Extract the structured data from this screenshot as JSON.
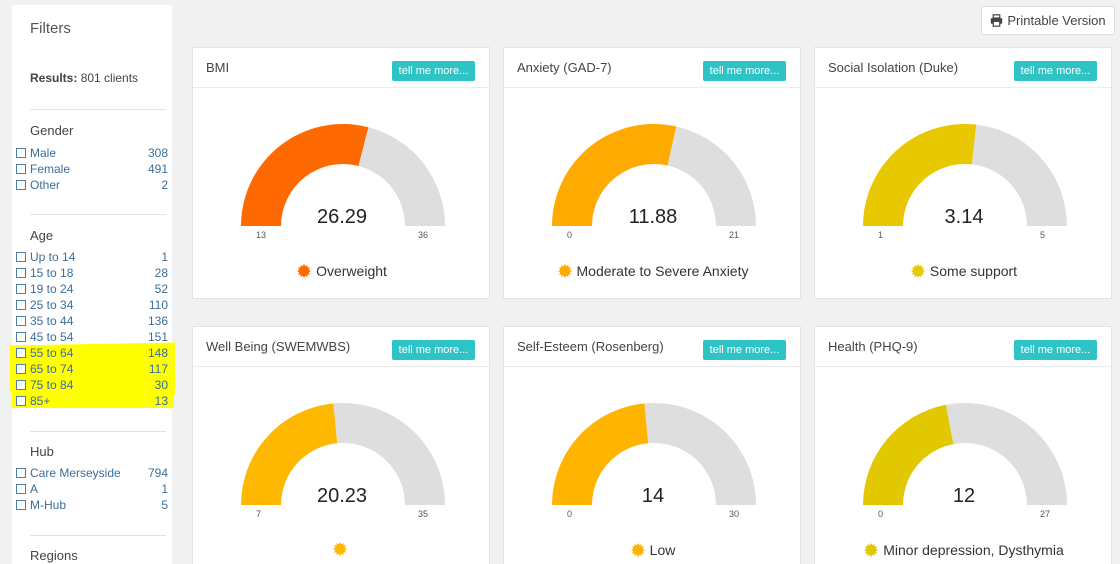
{
  "sidebar": {
    "title": "Filters",
    "results_label": "Results:",
    "results_value": "801 clients",
    "groups": [
      {
        "heading": "Gender",
        "items": [
          {
            "label": "Male",
            "count": "308"
          },
          {
            "label": "Female",
            "count": "491"
          },
          {
            "label": "Other",
            "count": "2"
          }
        ]
      },
      {
        "heading": "Age",
        "items": [
          {
            "label": "Up to 14",
            "count": "1"
          },
          {
            "label": "15 to 18",
            "count": "28"
          },
          {
            "label": "19 to 24",
            "count": "52"
          },
          {
            "label": "25 to 34",
            "count": "110"
          },
          {
            "label": "35 to 44",
            "count": "136"
          },
          {
            "label": "45 to 54",
            "count": "151"
          },
          {
            "label": "55 to 64",
            "count": "148"
          },
          {
            "label": "65 to 74",
            "count": "117"
          },
          {
            "label": "75 to 84",
            "count": "30"
          },
          {
            "label": "85+",
            "count": "13"
          }
        ]
      },
      {
        "heading": "Hub",
        "items": [
          {
            "label": "Care Merseyside",
            "count": "794"
          },
          {
            "label": "A",
            "count": "1"
          },
          {
            "label": "M-Hub",
            "count": "5"
          }
        ]
      },
      {
        "heading": "Regions",
        "items": []
      }
    ]
  },
  "print_button": {
    "label": "Printable Version",
    "icon": "printer-icon"
  },
  "tell_more_label": "tell me more...",
  "colors": {
    "track": "#dedede",
    "button": "#2ec4c6",
    "highlight": "#ffff00"
  },
  "cards": [
    {
      "title": "BMI",
      "value": "26.29",
      "min": "13",
      "max": "36",
      "fill_fraction": 0.58,
      "color": "#ff6a00",
      "status": "Overweight"
    },
    {
      "title": "Anxiety (GAD-7)",
      "value": "11.88",
      "min": "0",
      "max": "21",
      "fill_fraction": 0.57,
      "color": "#ffaa00",
      "status": "Moderate to Severe Anxiety"
    },
    {
      "title": "Social Isolation (Duke)",
      "value": "3.14",
      "min": "1",
      "max": "5",
      "fill_fraction": 0.535,
      "color": "#e8c800",
      "status": "Some support"
    },
    {
      "title": "Well Being (SWEMWBS)",
      "value": "20.23",
      "min": "7",
      "max": "35",
      "fill_fraction": 0.47,
      "color": "#ffb800",
      "status": ""
    },
    {
      "title": "Self-Esteem (Rosenberg)",
      "value": "14",
      "min": "0",
      "max": "30",
      "fill_fraction": 0.47,
      "color": "#ffb400",
      "status": "Low"
    },
    {
      "title": "Health (PHQ-9)",
      "value": "12",
      "min": "0",
      "max": "27",
      "fill_fraction": 0.44,
      "color": "#e2c800",
      "status": "Minor depression, Dysthymia"
    }
  ]
}
